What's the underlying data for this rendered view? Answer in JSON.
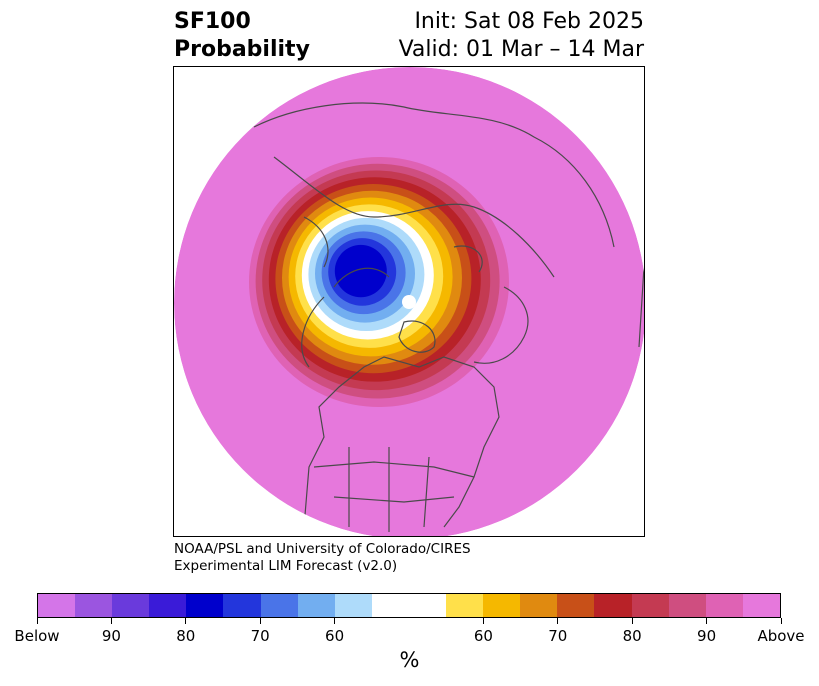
{
  "header": {
    "title_line1": "SF100",
    "title_line2": "Probability",
    "init": "Init: Sat 08 Feb 2025",
    "valid": "Valid: 01 Mar – 14 Mar"
  },
  "credit": {
    "line1": "NOAA/PSL and University of Colorado/CIRES",
    "line2": "Experimental LIM Forecast (v2.0)"
  },
  "colorbar": {
    "unit": "%",
    "colors": [
      "#d475e8",
      "#9b55e0",
      "#6a3adc",
      "#3a1bd8",
      "#0000cc",
      "#2336dc",
      "#4a74e8",
      "#72aef0",
      "#aedbfa",
      "#ffffff",
      "#ffe04a",
      "#f5b800",
      "#e08a10",
      "#c85018",
      "#b82228",
      "#c43a52",
      "#cf4e80",
      "#df62b4",
      "#e678dc"
    ],
    "ticks": [
      "Below",
      "90",
      "80",
      "70",
      "60",
      "60",
      "70",
      "80",
      "90",
      "Above"
    ]
  },
  "map": {
    "background_color": "#e678dc",
    "contour_colors": [
      "#df62b4",
      "#cf4e80",
      "#c43a52",
      "#b82228",
      "#c85018",
      "#e08a10",
      "#f5b800",
      "#ffe04a",
      "#ffffff",
      "#aedbfa",
      "#72aef0",
      "#4a74e8",
      "#2336dc",
      "#0000cc"
    ]
  }
}
